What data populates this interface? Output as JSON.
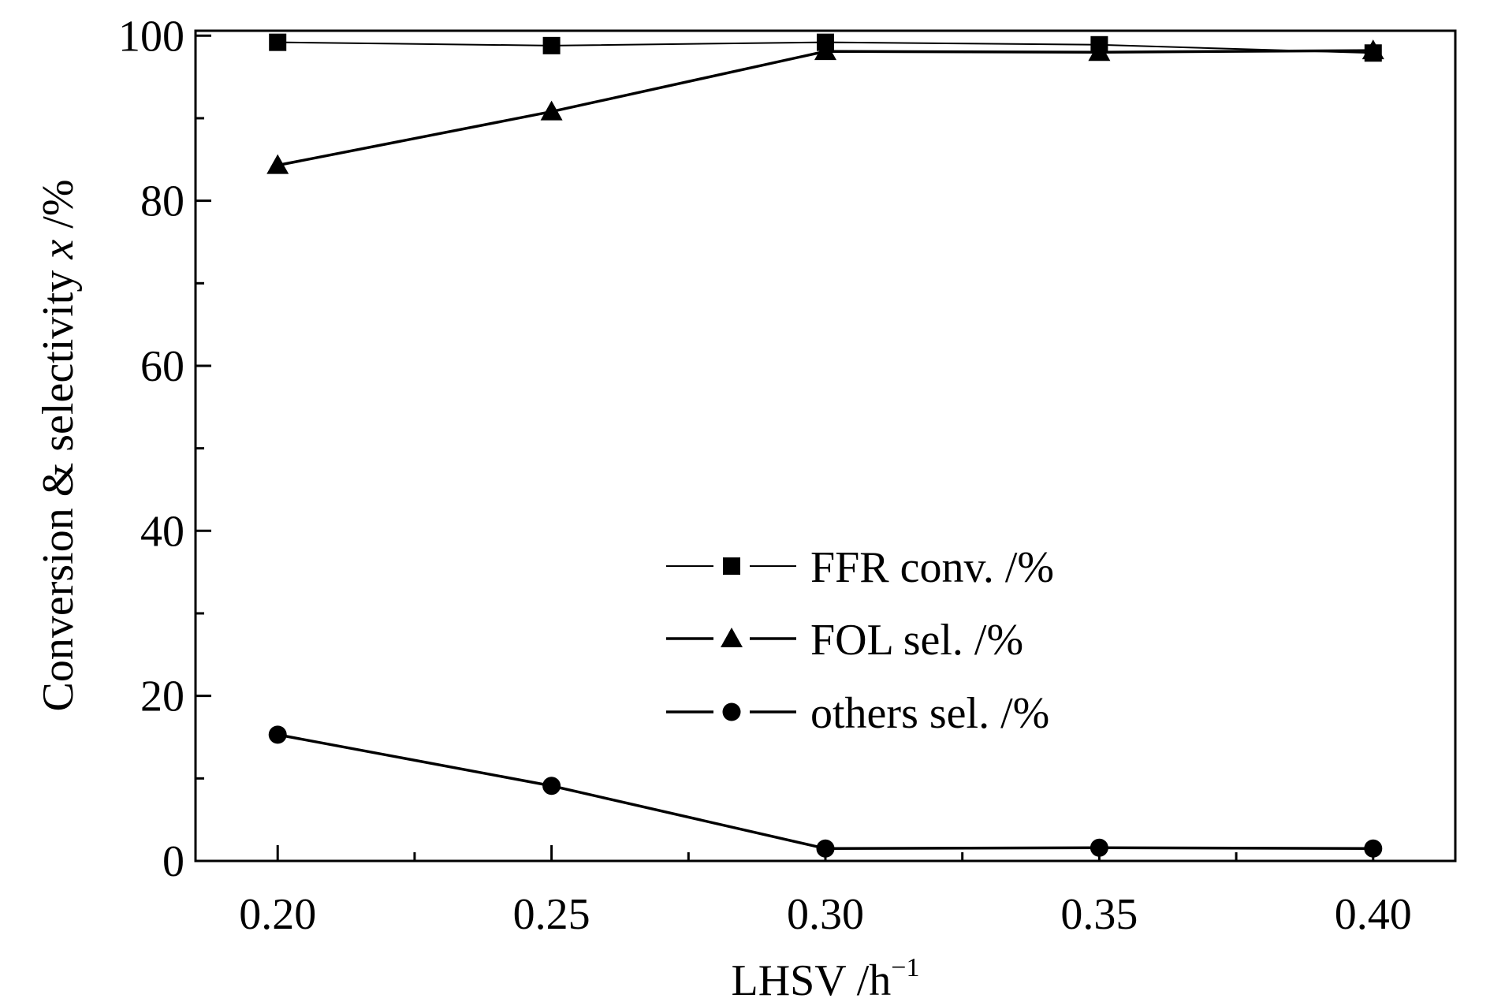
{
  "chart_data": {
    "type": "line",
    "title": "",
    "xlabel": "LHSV /h",
    "xlabel_sup": "−1",
    "ylabel": "Conversion & selectivity ",
    "ylabel_italic": "x",
    "ylabel_unit": " /%",
    "x": [
      0.2,
      0.25,
      0.3,
      0.35,
      0.4
    ],
    "xlim": [
      0.185,
      0.415
    ],
    "ylim": [
      0,
      100.6
    ],
    "xticks": [
      0.2,
      0.25,
      0.3,
      0.35,
      0.4
    ],
    "xtick_labels": [
      "0.20",
      "0.25",
      "0.30",
      "0.35",
      "0.40"
    ],
    "yticks": [
      0,
      20,
      40,
      60,
      80,
      100
    ],
    "ytick_labels": [
      "0",
      "20",
      "40",
      "60",
      "80",
      "100"
    ],
    "grid": false,
    "legend_placement": "center-right",
    "series": [
      {
        "name": "FFR conv. /%",
        "marker": "square",
        "line": "thin",
        "color": "#000000",
        "values": [
          99.2,
          98.8,
          99.2,
          98.9,
          97.9
        ]
      },
      {
        "name": "FOL sel. /%",
        "marker": "triangle",
        "line": "thick",
        "color": "#000000",
        "values": [
          84.3,
          90.8,
          98.1,
          98.0,
          98.2
        ]
      },
      {
        "name": "others sel. /%",
        "marker": "circle",
        "line": "thick",
        "color": "#000000",
        "values": [
          15.3,
          9.1,
          1.5,
          1.6,
          1.5
        ]
      }
    ]
  }
}
